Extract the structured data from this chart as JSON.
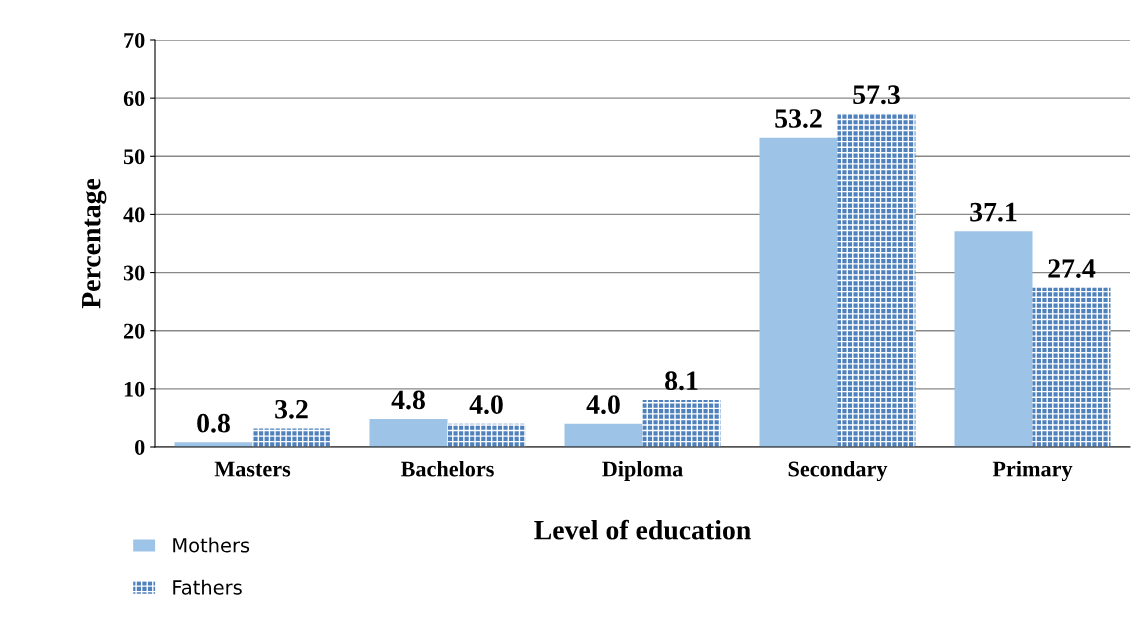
{
  "chart_data": {
    "type": "bar",
    "xlabel": "Level of education",
    "ylabel": "Percentage",
    "categories": [
      "Masters",
      "Bachelors",
      "Diploma",
      "Secondary",
      "Primary"
    ],
    "series": [
      {
        "name": "Mothers",
        "color": "#9dc3e6",
        "values": [
          0.8,
          4.8,
          4.0,
          53.2,
          37.1
        ],
        "value_labels": [
          "0.8",
          "4.8",
          "4.0",
          "53.2",
          "37.1"
        ]
      },
      {
        "name": "Fathers",
        "color": "#4f81bd",
        "values": [
          3.2,
          4.0,
          8.1,
          57.3,
          27.4
        ],
        "value_labels": [
          "3.2",
          "4.0",
          "8.1",
          "57.3",
          "27.4"
        ]
      }
    ],
    "ylim": [
      0,
      70
    ],
    "yticks": [
      0,
      10,
      20,
      30,
      40,
      50,
      60,
      70
    ],
    "grid": "y",
    "legend": "bottom left"
  }
}
